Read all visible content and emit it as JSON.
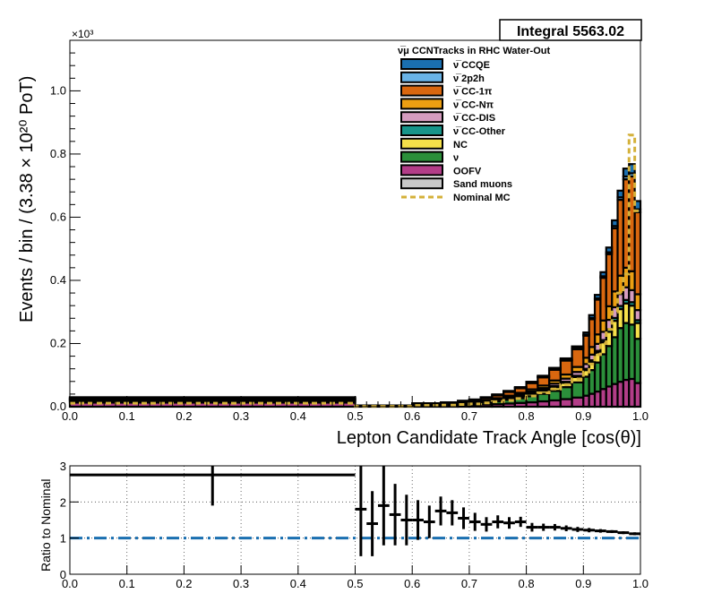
{
  "integral_box": {
    "text": "Integral 5563.02"
  },
  "exponent_label": "×10³",
  "legend": {
    "title": "ν̅μ CCNTracks in RHC Water-Out",
    "items": [
      {
        "label": "ν̅ CCQE",
        "color": "#1a6fb0"
      },
      {
        "label": "ν̅ 2p2h",
        "color": "#69b3e7"
      },
      {
        "label": "ν̅ CC-1π",
        "color": "#d9670f"
      },
      {
        "label": "ν̅ CC-Nπ",
        "color": "#ec9f12"
      },
      {
        "label": "ν̅ CC-DIS",
        "color": "#d59cbf"
      },
      {
        "label": "ν̅ CC-Other",
        "color": "#17958a"
      },
      {
        "label": "NC",
        "color": "#f5e04a"
      },
      {
        "label": "ν",
        "color": "#2b8f3a"
      },
      {
        "label": "OOFV",
        "color": "#b23d88"
      },
      {
        "label": "Sand muons",
        "color": "#c8c8c8"
      },
      {
        "label": "Nominal MC",
        "color": "#d4b13a",
        "dashed": true
      }
    ]
  },
  "chart_data": [
    {
      "type": "bar",
      "stacked": true,
      "ylabel": "Events / bin / (3.38 × 10²⁰ PoT)",
      "xlabel": "Lepton Candidate Track Angle [cos(θ)]",
      "xlim": [
        0.0,
        1.0
      ],
      "ylim": [
        0.0,
        1.16
      ],
      "y_scale_label": "×10³",
      "xticks": [
        "0.0",
        "0.1",
        "0.2",
        "0.3",
        "0.4",
        "0.5",
        "0.6",
        "0.7",
        "0.8",
        "0.9",
        "1.0"
      ],
      "yticks": [
        "0.0",
        "0.2",
        "0.4",
        "0.6",
        "0.8",
        "1.0"
      ],
      "bin_edges": [
        0.0,
        0.5,
        0.6,
        0.65,
        0.68,
        0.7,
        0.72,
        0.74,
        0.76,
        0.78,
        0.8,
        0.82,
        0.84,
        0.86,
        0.88,
        0.9,
        0.91,
        0.92,
        0.93,
        0.94,
        0.95,
        0.96,
        0.97,
        0.98,
        0.99,
        1.0
      ],
      "series": [
        {
          "name": "OOFV",
          "values": [
            0.013,
            0.002,
            0.003,
            0.004,
            0.005,
            0.006,
            0.007,
            0.008,
            0.01,
            0.012,
            0.014,
            0.017,
            0.02,
            0.024,
            0.029,
            0.035,
            0.041,
            0.048,
            0.056,
            0.064,
            0.072,
            0.079,
            0.085,
            0.088,
            0.075
          ]
        },
        {
          "name": "ν",
          "values": [
            0.005,
            0.001,
            0.002,
            0.003,
            0.004,
            0.005,
            0.007,
            0.009,
            0.012,
            0.015,
            0.019,
            0.024,
            0.03,
            0.038,
            0.048,
            0.06,
            0.075,
            0.092,
            0.11,
            0.128,
            0.148,
            0.17,
            0.18,
            0.172,
            0.14
          ]
        },
        {
          "name": "NC",
          "values": [
            0.003,
            0.0,
            0.001,
            0.001,
            0.002,
            0.002,
            0.003,
            0.004,
            0.005,
            0.006,
            0.008,
            0.01,
            0.012,
            0.014,
            0.017,
            0.021,
            0.026,
            0.031,
            0.038,
            0.045,
            0.052,
            0.06,
            0.062,
            0.06,
            0.05
          ]
        },
        {
          "name": "ν̅ CC-Other",
          "values": [
            0.001,
            0.0,
            0.0,
            0.0,
            0.001,
            0.001,
            0.001,
            0.001,
            0.001,
            0.002,
            0.002,
            0.002,
            0.003,
            0.003,
            0.004,
            0.004,
            0.005,
            0.006,
            0.007,
            0.008,
            0.009,
            0.01,
            0.011,
            0.011,
            0.009
          ]
        },
        {
          "name": "ν̅ CC-DIS",
          "values": [
            0.002,
            0.0,
            0.001,
            0.001,
            0.001,
            0.001,
            0.002,
            0.002,
            0.003,
            0.004,
            0.005,
            0.006,
            0.008,
            0.01,
            0.012,
            0.015,
            0.018,
            0.022,
            0.026,
            0.03,
            0.034,
            0.038,
            0.04,
            0.038,
            0.032
          ]
        },
        {
          "name": "ν̅ CC-Nπ",
          "values": [
            0.002,
            0.0,
            0.001,
            0.001,
            0.001,
            0.002,
            0.002,
            0.003,
            0.004,
            0.005,
            0.007,
            0.008,
            0.01,
            0.013,
            0.016,
            0.02,
            0.024,
            0.03,
            0.036,
            0.043,
            0.05,
            0.058,
            0.062,
            0.06,
            0.05
          ]
        },
        {
          "name": "ν̅ CC-1π",
          "values": [
            0.003,
            0.001,
            0.002,
            0.003,
            0.004,
            0.005,
            0.007,
            0.009,
            0.012,
            0.015,
            0.02,
            0.026,
            0.034,
            0.044,
            0.056,
            0.07,
            0.088,
            0.11,
            0.135,
            0.165,
            0.2,
            0.24,
            0.28,
            0.3,
            0.26
          ]
        },
        {
          "name": "ν̅ 2p2h",
          "values": [
            0.0,
            0.0,
            0.0,
            0.0,
            0.0,
            0.0,
            0.0,
            0.001,
            0.001,
            0.001,
            0.001,
            0.002,
            0.002,
            0.002,
            0.003,
            0.003,
            0.004,
            0.004,
            0.005,
            0.006,
            0.007,
            0.008,
            0.009,
            0.01,
            0.009
          ]
        },
        {
          "name": "ν̅ CCQE",
          "values": [
            0.001,
            0.0,
            0.001,
            0.001,
            0.001,
            0.001,
            0.001,
            0.002,
            0.002,
            0.002,
            0.003,
            0.003,
            0.004,
            0.005,
            0.006,
            0.007,
            0.009,
            0.011,
            0.013,
            0.015,
            0.018,
            0.021,
            0.025,
            0.029,
            0.026
          ]
        },
        {
          "name": "Sand muons",
          "values": [
            0.0,
            0.0,
            0.0,
            0.0,
            0.0,
            0.0,
            0.0,
            0.0,
            0.0,
            0.0,
            0.0,
            0.0,
            0.0,
            0.0,
            0.0,
            0.0,
            0.0,
            0.0,
            0.0,
            0.0,
            0.0,
            0.0,
            0.0,
            0.0,
            0.0
          ]
        }
      ],
      "nominal": {
        "name": "Nominal MC",
        "values": [
          0.011,
          0.001,
          0.004,
          0.005,
          0.007,
          0.009,
          0.012,
          0.016,
          0.02,
          0.026,
          0.034,
          0.044,
          0.056,
          0.07,
          0.088,
          0.11,
          0.135,
          0.165,
          0.2,
          0.245,
          0.3,
          0.36,
          0.42,
          0.86,
          0.62
        ]
      }
    },
    {
      "type": "scatter",
      "ylabel": "Ratio to Nominal",
      "xlim": [
        0.0,
        1.0
      ],
      "ylim": [
        0.0,
        3.0
      ],
      "xticks": [
        "0.0",
        "0.1",
        "0.2",
        "0.3",
        "0.4",
        "0.5",
        "0.6",
        "0.7",
        "0.8",
        "0.9",
        "1.0"
      ],
      "yticks": [
        "0",
        "1",
        "2",
        "3"
      ],
      "reference_line": 1.0,
      "points": [
        {
          "x0": 0.0,
          "x1": 0.5,
          "y": 2.75,
          "err": 0.0
        },
        {
          "x0": 0.25,
          "x1": 0.25,
          "y": 2.75,
          "err": 0.85
        },
        {
          "x0": 0.5,
          "x1": 0.52,
          "y": 1.8,
          "err": 1.3
        },
        {
          "x0": 0.52,
          "x1": 0.54,
          "y": 1.4,
          "err": 0.9
        },
        {
          "x0": 0.54,
          "x1": 0.56,
          "y": 1.9,
          "err": 1.1
        },
        {
          "x0": 0.56,
          "x1": 0.58,
          "y": 1.65,
          "err": 0.85
        },
        {
          "x0": 0.58,
          "x1": 0.6,
          "y": 1.5,
          "err": 0.7
        },
        {
          "x0": 0.6,
          "x1": 0.62,
          "y": 1.5,
          "err": 0.55
        },
        {
          "x0": 0.62,
          "x1": 0.64,
          "y": 1.45,
          "err": 0.45
        },
        {
          "x0": 0.64,
          "x1": 0.66,
          "y": 1.75,
          "err": 0.4
        },
        {
          "x0": 0.66,
          "x1": 0.68,
          "y": 1.7,
          "err": 0.35
        },
        {
          "x0": 0.68,
          "x1": 0.7,
          "y": 1.55,
          "err": 0.3
        },
        {
          "x0": 0.7,
          "x1": 0.72,
          "y": 1.45,
          "err": 0.25
        },
        {
          "x0": 0.72,
          "x1": 0.74,
          "y": 1.38,
          "err": 0.2
        },
        {
          "x0": 0.74,
          "x1": 0.76,
          "y": 1.45,
          "err": 0.18
        },
        {
          "x0": 0.76,
          "x1": 0.78,
          "y": 1.42,
          "err": 0.16
        },
        {
          "x0": 0.78,
          "x1": 0.8,
          "y": 1.45,
          "err": 0.14
        },
        {
          "x0": 0.8,
          "x1": 0.82,
          "y": 1.3,
          "err": 0.12
        },
        {
          "x0": 0.82,
          "x1": 0.84,
          "y": 1.3,
          "err": 0.1
        },
        {
          "x0": 0.84,
          "x1": 0.86,
          "y": 1.3,
          "err": 0.09
        },
        {
          "x0": 0.86,
          "x1": 0.88,
          "y": 1.27,
          "err": 0.08
        },
        {
          "x0": 0.88,
          "x1": 0.9,
          "y": 1.24,
          "err": 0.07
        },
        {
          "x0": 0.9,
          "x1": 0.92,
          "y": 1.22,
          "err": 0.06
        },
        {
          "x0": 0.92,
          "x1": 0.94,
          "y": 1.2,
          "err": 0.05
        },
        {
          "x0": 0.94,
          "x1": 0.96,
          "y": 1.18,
          "err": 0.04
        },
        {
          "x0": 0.96,
          "x1": 0.98,
          "y": 1.15,
          "err": 0.04
        },
        {
          "x0": 0.98,
          "x1": 1.0,
          "y": 1.12,
          "err": 0.04
        }
      ]
    }
  ]
}
